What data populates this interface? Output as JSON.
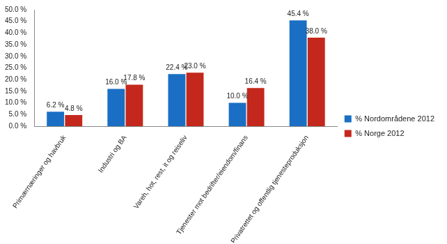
{
  "chart_data": {
    "type": "bar",
    "categories": [
      "Primærnæringer og havbruk",
      "Industri og BA",
      "Vareh, hot, rest, it og reiseliv",
      "Tjenester mot bedrifter/eiendom/finans",
      "Privatrettet og offentlig tjenesteproduksjon"
    ],
    "series": [
      {
        "name": "% Nordområdene 2012",
        "color": "#1a6fc4",
        "values": [
          6.2,
          16.0,
          22.4,
          10.0,
          45.4
        ],
        "value_labels": [
          "6.2 %",
          "16.0 %",
          "22.4 %",
          "10.0 %",
          "45.4 %"
        ]
      },
      {
        "name": "% Norge 2012",
        "color": "#c4281c",
        "values": [
          4.8,
          17.8,
          23.0,
          16.4,
          38.0
        ],
        "value_labels": [
          "4.8 %",
          "17.8 %",
          "23.0 %",
          "16.4 %",
          "38.0 %"
        ]
      }
    ],
    "ylim": [
      0,
      50
    ],
    "yticks": [
      {
        "value": 0,
        "label": "0.0 %"
      },
      {
        "value": 5,
        "label": "5.0 %"
      },
      {
        "value": 10,
        "label": "10.0 %"
      },
      {
        "value": 15,
        "label": "15.0 %"
      },
      {
        "value": 20,
        "label": "20.0 %"
      },
      {
        "value": 25,
        "label": "25.0 %"
      },
      {
        "value": 30,
        "label": "30.0 %"
      },
      {
        "value": 35,
        "label": "35.0 %"
      },
      {
        "value": 40,
        "label": "40.0 %"
      },
      {
        "value": 45,
        "label": "45.0 %"
      },
      {
        "value": 50,
        "label": "50.0 %"
      }
    ],
    "grid": false,
    "legend": "right",
    "data_labels": true
  }
}
